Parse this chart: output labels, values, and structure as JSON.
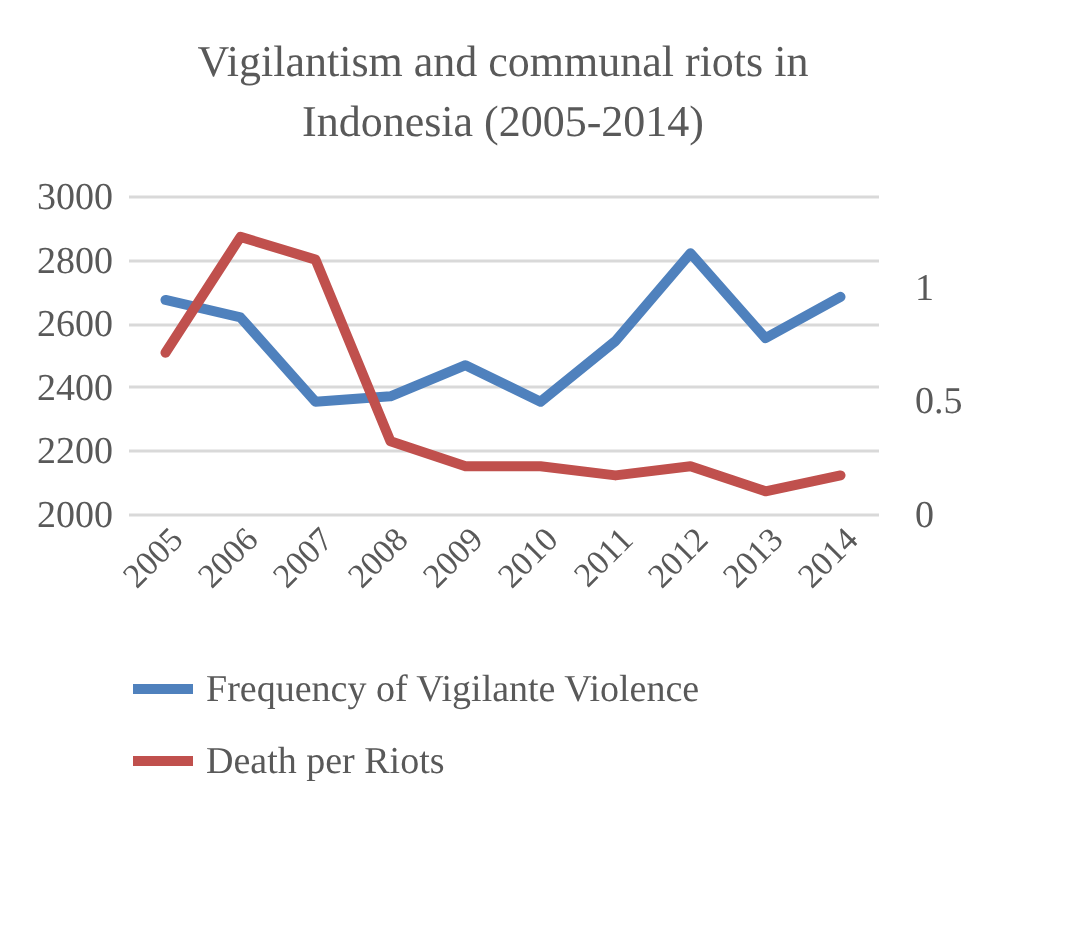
{
  "chart_data": {
    "type": "line",
    "title": "Vigilantism and communal riots in Indonesia (2005-2014)",
    "categories": [
      "2005",
      "2006",
      "2007",
      "2008",
      "2009",
      "2010",
      "2011",
      "2012",
      "2013",
      "2014"
    ],
    "series": [
      {
        "name": "Frequency of Vigilante Violence",
        "color": "#4f81bd",
        "values": [
          2673,
          2618,
          2353,
          2370,
          2468,
          2353,
          2544,
          2820,
          2553,
          2683
        ]
      },
      {
        "name": "Death per Riots",
        "color": "#c0504d",
        "axis": "y2",
        "values": [
          0.71,
          1.22,
          1.12,
          0.32,
          0.21,
          0.21,
          0.17,
          0.21,
          0.1,
          0.17
        ]
      }
    ],
    "ylim": [
      2000,
      3000
    ],
    "yticks": [
      2000,
      2200,
      2400,
      2600,
      2800,
      3000
    ],
    "y2lim": [
      0,
      1.4
    ],
    "y2ticks": [
      0,
      0.5,
      1
    ],
    "grid": "y",
    "legend": "bottom",
    "marker": "none",
    "line_style": "solid"
  }
}
